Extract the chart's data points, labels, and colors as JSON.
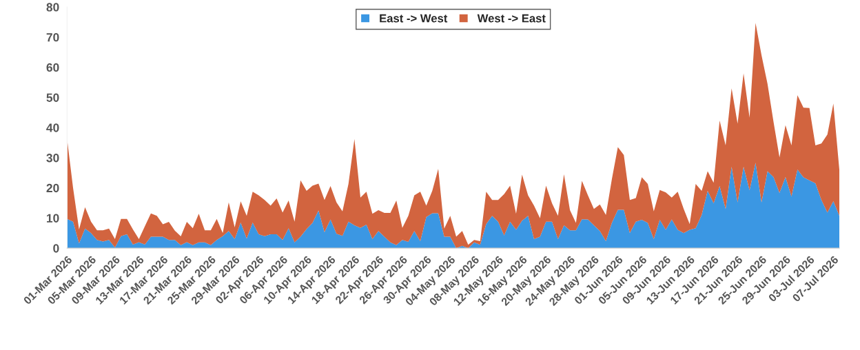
{
  "chart_data": {
    "type": "area",
    "stacked": true,
    "categories": [
      "01-Mar 2026",
      null,
      null,
      null,
      "05-Mar 2026",
      null,
      null,
      null,
      "09-Mar 2026",
      null,
      null,
      null,
      "13-Mar 2026",
      null,
      null,
      null,
      "17-Mar 2026",
      null,
      null,
      null,
      "21-Mar 2026",
      null,
      null,
      null,
      "25-Mar 2026",
      null,
      null,
      null,
      "29-Mar 2026",
      null,
      null,
      null,
      "02-Apr 2026",
      null,
      null,
      null,
      "06-Apr 2026",
      null,
      null,
      null,
      "10-Apr 2026",
      null,
      null,
      null,
      "14-Apr 2026",
      null,
      null,
      null,
      "18-Apr 2026",
      null,
      null,
      null,
      "22-Apr 2026",
      null,
      null,
      null,
      "26-Apr 2026",
      null,
      null,
      null,
      "30-Apr 2026",
      null,
      null,
      null,
      "04-May 2026",
      null,
      null,
      null,
      "08-May 2026",
      null,
      null,
      null,
      "12-May 2026",
      null,
      null,
      null,
      "16-May 2026",
      null,
      null,
      null,
      "20-May 2026",
      null,
      null,
      null,
      "24-May 2026",
      null,
      null,
      null,
      "28-May 2026",
      null,
      null,
      null,
      "01-Jun 2026",
      null,
      null,
      null,
      "05-Jun 2026",
      null,
      null,
      null,
      "09-Jun 2026",
      null,
      null,
      null,
      "13-Jun 2026",
      null,
      null,
      null,
      "17-Jun 2026",
      null,
      null,
      null,
      "21-Jun 2026",
      null,
      null,
      null,
      "25-Jun 2026",
      null,
      null,
      null,
      "29-Jun 2026",
      null,
      null,
      null,
      "03-Jul 2026",
      null,
      null,
      null,
      "07-Jul 2026",
      null
    ],
    "series": [
      {
        "name": "East -> West",
        "color": "#3b97e3",
        "values": [
          9.7,
          8.8,
          1.6,
          6.5,
          5.0,
          2.7,
          2.2,
          2.7,
          0.2,
          4.0,
          4.6,
          1.2,
          2.0,
          1.2,
          3.8,
          3.8,
          3.8,
          2.7,
          2.7,
          1.0,
          2.0,
          1.0,
          1.9,
          1.9,
          1.0,
          2.7,
          4.0,
          5.7,
          3.0,
          8.5,
          3.2,
          8.5,
          4.6,
          4.0,
          4.6,
          4.6,
          2.7,
          6.6,
          1.9,
          3.8,
          6.3,
          8.4,
          12.5,
          5.3,
          9.5,
          4.8,
          4.1,
          8.8,
          7.6,
          6.7,
          7.8,
          3.0,
          5.7,
          3.8,
          1.9,
          1.0,
          2.7,
          2.1,
          5.7,
          2.3,
          10.3,
          11.6,
          11.6,
          3.8,
          3.8,
          0,
          0.8,
          0,
          1.9,
          1.1,
          8.0,
          10.7,
          8.8,
          4.2,
          8.8,
          6.1,
          9.1,
          10.7,
          3.0,
          3.8,
          8.8,
          8.8,
          3.0,
          7.6,
          5.9,
          5.9,
          9.6,
          9.5,
          7.6,
          5.7,
          2.3,
          8.4,
          12.7,
          12.7,
          5.0,
          8.8,
          9.4,
          8.4,
          3.0,
          9.4,
          6.1,
          9.5,
          6.1,
          5.0,
          6.1,
          6.6,
          11.0,
          19.0,
          14.9,
          20.6,
          13.0,
          27.0,
          15.2,
          27.0,
          19.2,
          28.3,
          15.2,
          25.5,
          23.6,
          18.3,
          23.6,
          17.1,
          26.1,
          23.5,
          22.5,
          21.5,
          16.0,
          11.8,
          15.6,
          10.7
        ]
      },
      {
        "name": "West -> East",
        "color": "#d2643f",
        "values": [
          26.5,
          11.2,
          4.6,
          7.1,
          3.8,
          3.2,
          3.7,
          3.8,
          2.8,
          5.7,
          5.1,
          5.0,
          1.0,
          6.1,
          7.7,
          6.9,
          4.1,
          6.0,
          3.1,
          2.9,
          6.7,
          5.6,
          9.5,
          4.0,
          4.9,
          7.0,
          1.0,
          9.5,
          3.9,
          7.0,
          7.5,
          10.2,
          12.9,
          12.0,
          9.5,
          11.9,
          9.1,
          9.2,
          6.9,
          18.7,
          12.7,
          12.3,
          8.9,
          10.7,
          11.1,
          10.4,
          8.1,
          12.5,
          28.6,
          10.1,
          10.9,
          8.4,
          6.9,
          7.9,
          9.8,
          14.8,
          4.0,
          8.6,
          11.8,
          16.4,
          3.8,
          7.4,
          14.7,
          2.7,
          6.9,
          3.8,
          4.9,
          1.1,
          0.8,
          1.2,
          10.7,
          5.3,
          7.2,
          13.7,
          11.9,
          5.3,
          15.3,
          6.8,
          11.1,
          6.1,
          11.9,
          6.1,
          7.7,
          16.9,
          6.7,
          2.5,
          12.7,
          8.0,
          5.4,
          8.8,
          8.7,
          14.5,
          20.8,
          18.2,
          11.0,
          7.8,
          14.1,
          12.9,
          9.2,
          9.9,
          12.4,
          7.3,
          12.6,
          8.0,
          1.9,
          14.7,
          8.0,
          6.5,
          6.8,
          21.7,
          21.1,
          26.0,
          26.1,
          31.0,
          24.1,
          46.4,
          48.8,
          29.0,
          18.3,
          11.8,
          17.2,
          17.0,
          24.6,
          23.1,
          24.0,
          12.6,
          18.7,
          25.9,
          32.4,
          15.2
        ]
      }
    ],
    "ylim": [
      0,
      80
    ],
    "yticks": [
      0,
      10,
      20,
      30,
      40,
      50,
      60,
      70,
      80
    ],
    "legend": "top",
    "grid": false
  }
}
